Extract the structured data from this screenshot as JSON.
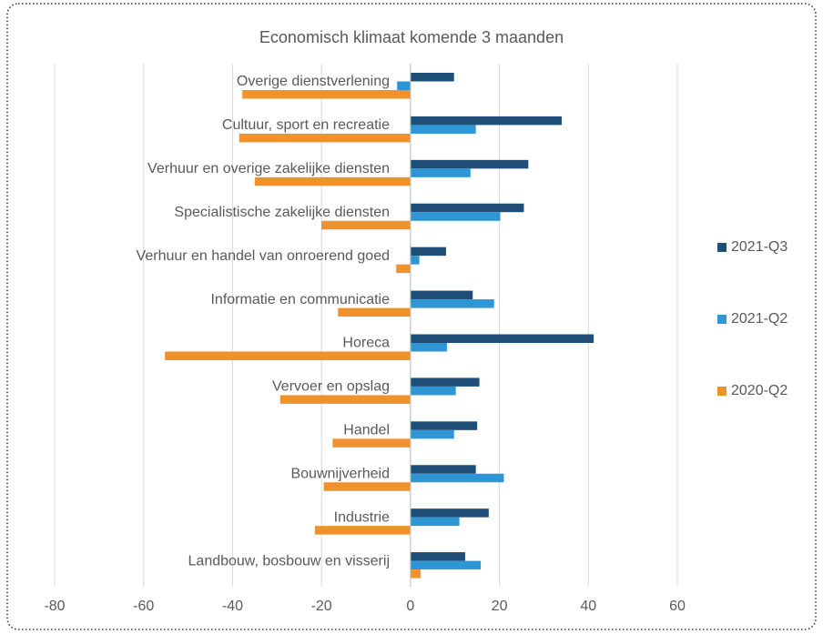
{
  "chart_data": {
    "type": "hbar",
    "title": "Economisch klimaat komende 3 maanden",
    "categories": [
      "Overige dienstverlening",
      "Cultuur, sport en recreatie",
      "Verhuur en overige zakelijke diensten",
      "Specialistische zakelijke diensten",
      "Verhuur en handel van onroerend goed",
      "Informatie en communicatie",
      "Horeca",
      "Vervoer en opslag",
      "Handel",
      "Bouwnijverheid",
      "Industrie",
      "Landbouw, bosbouw en visserij"
    ],
    "series": [
      {
        "name": "2021-Q3",
        "color": "#1f4e79",
        "values": [
          9.8,
          34,
          26.5,
          25.5,
          8,
          14,
          41.2,
          15.5,
          15,
          14.7,
          17.6,
          12.3
        ]
      },
      {
        "name": "2021-Q2",
        "color": "#2e96d4",
        "values": [
          -3,
          14.7,
          13.5,
          20.2,
          2,
          18.8,
          8.2,
          10.2,
          9.8,
          21,
          11,
          15.8
        ]
      },
      {
        "name": "2020-Q2",
        "color": "#f0922b",
        "values": [
          -37.8,
          -38.5,
          -35,
          -20,
          -3.2,
          -16.3,
          -55.2,
          -29.3,
          -17.5,
          -19.5,
          -21.5,
          2.3
        ]
      }
    ],
    "xlim": [
      -80,
      60
    ],
    "xticks": [
      -80,
      -60,
      -40,
      -20,
      0,
      20,
      40,
      60
    ],
    "grid": true,
    "legend": "right"
  }
}
